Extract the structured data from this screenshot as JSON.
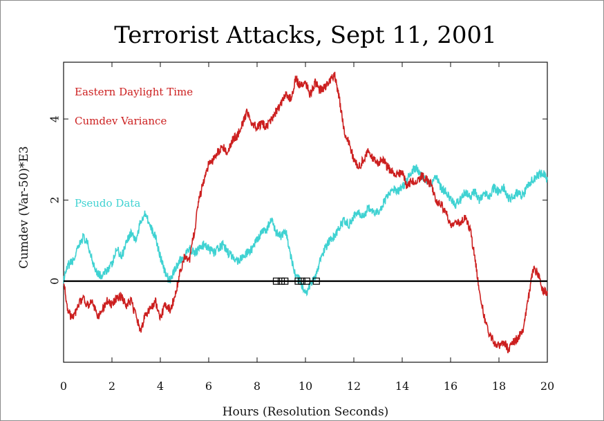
{
  "chart_data": {
    "type": "line",
    "title": "Terrorist Attacks, Sept 11, 2001",
    "xlabel": "Hours (Resolution Seconds)",
    "ylabel": "Cumdev (Var-50)*E3",
    "xlim": [
      0,
      20
    ],
    "ylim": [
      -2.0,
      5.4
    ],
    "x_ticks": [
      0,
      2,
      4,
      6,
      8,
      10,
      12,
      14,
      16,
      18,
      20
    ],
    "y_ticks": [
      0,
      2,
      4
    ],
    "annotations": [
      "Eastern Daylight Time"
    ],
    "event_markers_x": [
      8.8,
      9.0,
      9.15,
      9.7,
      9.85,
      10.05,
      10.45
    ],
    "series": [
      {
        "name": "Cumdev Variance",
        "color": "#cc1f1f",
        "x": [
          0,
          0.2,
          0.4,
          0.6,
          0.8,
          1.0,
          1.2,
          1.4,
          1.6,
          1.8,
          2.0,
          2.2,
          2.4,
          2.6,
          2.8,
          3.0,
          3.2,
          3.4,
          3.6,
          3.8,
          4.0,
          4.2,
          4.4,
          4.6,
          4.8,
          5.0,
          5.2,
          5.4,
          5.6,
          5.8,
          6.0,
          6.2,
          6.4,
          6.6,
          6.8,
          7.0,
          7.2,
          7.4,
          7.6,
          7.8,
          8.0,
          8.2,
          8.4,
          8.6,
          8.8,
          9.0,
          9.2,
          9.4,
          9.6,
          9.8,
          10.0,
          10.2,
          10.4,
          10.6,
          10.8,
          11.0,
          11.2,
          11.4,
          11.6,
          11.8,
          12.0,
          12.2,
          12.4,
          12.6,
          12.8,
          13.0,
          13.2,
          13.4,
          13.6,
          13.8,
          14.0,
          14.2,
          14.4,
          14.6,
          14.8,
          15.0,
          15.2,
          15.4,
          15.6,
          15.8,
          16.0,
          16.2,
          16.4,
          16.6,
          16.8,
          17.0,
          17.2,
          17.4,
          17.6,
          17.8,
          18.0,
          18.2,
          18.4,
          18.6,
          18.8,
          19.0,
          19.2,
          19.4,
          19.6,
          19.8,
          20.0
        ],
        "values": [
          0.0,
          -0.8,
          -0.9,
          -0.6,
          -0.4,
          -0.6,
          -0.5,
          -0.9,
          -0.7,
          -0.5,
          -0.6,
          -0.4,
          -0.4,
          -0.6,
          -0.5,
          -0.9,
          -1.2,
          -0.8,
          -0.7,
          -0.5,
          -0.9,
          -0.6,
          -0.7,
          -0.4,
          0.2,
          0.6,
          0.5,
          1.2,
          2.0,
          2.5,
          2.9,
          3.0,
          3.2,
          3.3,
          3.2,
          3.5,
          3.6,
          3.9,
          4.2,
          3.9,
          3.8,
          3.9,
          3.8,
          4.0,
          4.2,
          4.4,
          4.6,
          4.5,
          5.0,
          4.8,
          4.9,
          4.6,
          4.9,
          4.7,
          4.8,
          4.9,
          5.1,
          4.5,
          3.7,
          3.4,
          3.0,
          2.8,
          3.0,
          3.2,
          3.0,
          2.9,
          3.0,
          2.8,
          2.7,
          2.6,
          2.7,
          2.3,
          2.5,
          2.4,
          2.6,
          2.5,
          2.4,
          2.0,
          1.9,
          1.7,
          1.4,
          1.5,
          1.4,
          1.6,
          1.3,
          0.6,
          -0.3,
          -0.9,
          -1.3,
          -1.5,
          -1.6,
          -1.5,
          -1.7,
          -1.5,
          -1.4,
          -1.2,
          -0.5,
          0.3,
          0.2,
          -0.2,
          -0.3
        ]
      },
      {
        "name": "Pseudo Data",
        "color": "#3fd2d2",
        "x": [
          0,
          0.2,
          0.4,
          0.6,
          0.8,
          1.0,
          1.2,
          1.4,
          1.6,
          1.8,
          2.0,
          2.2,
          2.4,
          2.6,
          2.8,
          3.0,
          3.2,
          3.4,
          3.6,
          3.8,
          4.0,
          4.2,
          4.4,
          4.6,
          4.8,
          5.0,
          5.2,
          5.4,
          5.6,
          5.8,
          6.0,
          6.2,
          6.4,
          6.6,
          6.8,
          7.0,
          7.2,
          7.4,
          7.6,
          7.8,
          8.0,
          8.2,
          8.4,
          8.6,
          8.8,
          9.0,
          9.2,
          9.4,
          9.6,
          9.8,
          10.0,
          10.2,
          10.4,
          10.6,
          10.8,
          11.0,
          11.2,
          11.4,
          11.6,
          11.8,
          12.0,
          12.2,
          12.4,
          12.6,
          12.8,
          13.0,
          13.2,
          13.4,
          13.6,
          13.8,
          14.0,
          14.2,
          14.4,
          14.6,
          14.8,
          15.0,
          15.2,
          15.4,
          15.6,
          15.8,
          16.0,
          16.2,
          16.4,
          16.6,
          16.8,
          17.0,
          17.2,
          17.4,
          17.6,
          17.8,
          18.0,
          18.2,
          18.4,
          18.6,
          18.8,
          19.0,
          19.2,
          19.4,
          19.6,
          19.8,
          20.0
        ],
        "values": [
          0.0,
          0.4,
          0.5,
          0.8,
          1.1,
          0.9,
          0.5,
          0.2,
          0.1,
          0.3,
          0.4,
          0.8,
          0.6,
          1.0,
          1.2,
          1.0,
          1.5,
          1.7,
          1.3,
          1.1,
          0.6,
          0.2,
          0.0,
          0.3,
          0.5,
          0.6,
          0.8,
          0.7,
          0.8,
          0.9,
          0.8,
          0.7,
          0.8,
          0.9,
          0.7,
          0.6,
          0.5,
          0.6,
          0.7,
          0.8,
          1.0,
          1.2,
          1.3,
          1.5,
          1.2,
          1.1,
          1.2,
          0.6,
          0.1,
          0.0,
          -0.3,
          -0.1,
          0.1,
          0.5,
          0.8,
          1.0,
          1.1,
          1.3,
          1.5,
          1.4,
          1.6,
          1.7,
          1.6,
          1.8,
          1.7,
          1.7,
          1.9,
          2.1,
          2.3,
          2.2,
          2.3,
          2.5,
          2.7,
          2.8,
          2.6,
          2.5,
          2.4,
          2.6,
          2.3,
          2.2,
          2.0,
          1.9,
          2.0,
          2.2,
          2.1,
          2.2,
          2.0,
          2.2,
          2.1,
          2.3,
          2.2,
          2.3,
          2.0,
          2.1,
          2.2,
          2.1,
          2.4,
          2.5,
          2.6,
          2.7,
          2.5
        ]
      }
    ]
  }
}
